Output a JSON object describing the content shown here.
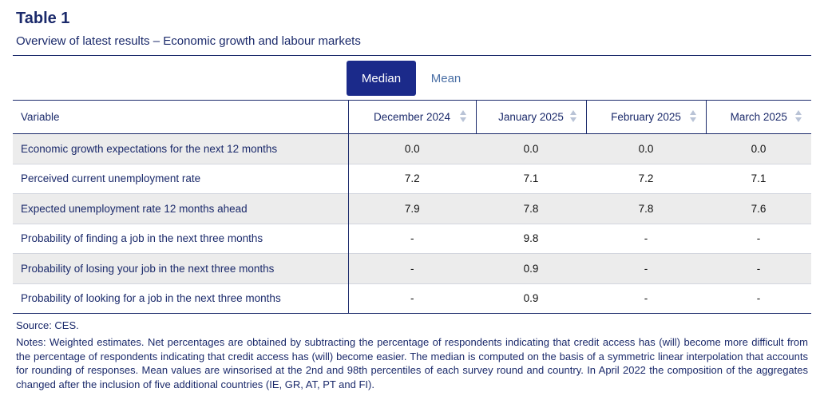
{
  "header": {
    "title": "Table 1",
    "subtitle": "Overview of latest results – Economic growth and labour markets"
  },
  "toggle": {
    "median_label": "Median",
    "mean_label": "Mean",
    "selected": "Median"
  },
  "table": {
    "columns": [
      "Variable",
      "December 2024",
      "January 2025",
      "February 2025",
      "March 2025"
    ],
    "rows": [
      {
        "variable": "Economic growth expectations for the next 12 months",
        "values": [
          "0.0",
          "0.0",
          "0.0",
          "0.0"
        ]
      },
      {
        "variable": "Perceived current unemployment rate",
        "values": [
          "7.2",
          "7.1",
          "7.2",
          "7.1"
        ]
      },
      {
        "variable": "Expected unemployment rate 12 months ahead",
        "values": [
          "7.9",
          "7.8",
          "7.8",
          "7.6"
        ]
      },
      {
        "variable": "Probability of finding a job in the next three months",
        "values": [
          "-",
          "9.8",
          "-",
          "-"
        ]
      },
      {
        "variable": "Probability of losing your job in the next three months",
        "values": [
          "-",
          "0.9",
          "-",
          "-"
        ]
      },
      {
        "variable": "Probability of looking for a job in the next three months",
        "values": [
          "-",
          "0.9",
          "-",
          "-"
        ]
      }
    ]
  },
  "footer": {
    "source": "Source: CES.",
    "notes": "Notes: Weighted estimates. Net percentages are obtained by subtracting the percentage of respondents indicating that credit access has (will) become more difficult from the percentage of respondents indicating that credit access has (will) become easier. The median is computed on the basis of a symmetric linear interpolation that accounts for rounding of responses. Mean values are winsorised at the 2nd and 98th percentiles of each survey round and country. In April 2022 the composition of the aggregates changed after the inclusion of five additional countries (IE, GR, AT, PT and FI)."
  },
  "colors": {
    "navy": "#1b2a6b",
    "active_button": "#1b2a8a",
    "row_shade": "#ececec"
  }
}
